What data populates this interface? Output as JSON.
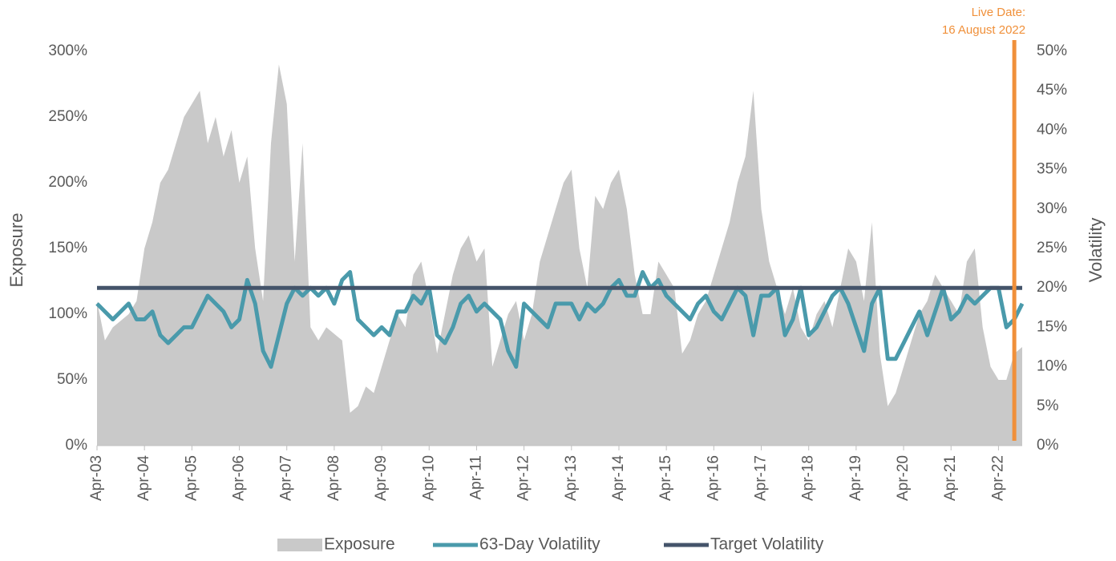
{
  "chart_data": {
    "type": "area-line",
    "x": [
      "Apr-03",
      "Jun-03",
      "Aug-03",
      "Oct-03",
      "Dec-03",
      "Feb-04",
      "Apr-04",
      "Jun-04",
      "Aug-04",
      "Oct-04",
      "Dec-04",
      "Feb-05",
      "Apr-05",
      "Jun-05",
      "Aug-05",
      "Oct-05",
      "Dec-05",
      "Feb-06",
      "Apr-06",
      "Jun-06",
      "Aug-06",
      "Oct-06",
      "Dec-06",
      "Feb-07",
      "Apr-07",
      "Jun-07",
      "Aug-07",
      "Oct-07",
      "Dec-07",
      "Feb-08",
      "Apr-08",
      "Jun-08",
      "Aug-08",
      "Oct-08",
      "Dec-08",
      "Feb-09",
      "Apr-09",
      "Jun-09",
      "Aug-09",
      "Oct-09",
      "Dec-09",
      "Feb-10",
      "Apr-10",
      "Jun-10",
      "Aug-10",
      "Oct-10",
      "Dec-10",
      "Feb-11",
      "Apr-11",
      "Jun-11",
      "Aug-11",
      "Oct-11",
      "Dec-11",
      "Feb-12",
      "Apr-12",
      "Jun-12",
      "Aug-12",
      "Oct-12",
      "Dec-12",
      "Feb-13",
      "Apr-13",
      "Jun-13",
      "Aug-13",
      "Oct-13",
      "Dec-13",
      "Feb-14",
      "Apr-14",
      "Jun-14",
      "Aug-14",
      "Oct-14",
      "Dec-14",
      "Feb-15",
      "Apr-15",
      "Jun-15",
      "Aug-15",
      "Oct-15",
      "Dec-15",
      "Feb-16",
      "Apr-16",
      "Jun-16",
      "Aug-16",
      "Oct-16",
      "Dec-16",
      "Feb-17",
      "Apr-17",
      "Jun-17",
      "Aug-17",
      "Oct-17",
      "Dec-17",
      "Feb-18",
      "Apr-18",
      "Jun-18",
      "Aug-18",
      "Oct-18",
      "Dec-18",
      "Feb-19",
      "Apr-19",
      "Jun-19",
      "Aug-19",
      "Oct-19",
      "Dec-19",
      "Feb-20",
      "Apr-20",
      "Jun-20",
      "Aug-20",
      "Oct-20",
      "Dec-20",
      "Feb-21",
      "Apr-21",
      "Jun-21",
      "Aug-21",
      "Oct-21",
      "Dec-21",
      "Feb-22",
      "Apr-22",
      "Jun-22",
      "Aug-22",
      "Oct-22"
    ],
    "xticks": [
      "Apr-03",
      "Apr-04",
      "Apr-05",
      "Apr-06",
      "Apr-07",
      "Apr-08",
      "Apr-09",
      "Apr-10",
      "Apr-11",
      "Apr-12",
      "Apr-13",
      "Apr-14",
      "Apr-15",
      "Apr-16",
      "Apr-17",
      "Apr-18",
      "Apr-19",
      "Apr-20",
      "Apr-21",
      "Apr-22"
    ],
    "ylabel": "Exposure",
    "y2label": "Volatility",
    "ylim": [
      0,
      300
    ],
    "yticks": [
      {
        "value": 0,
        "label": "0%"
      },
      {
        "value": 50,
        "label": "50%"
      },
      {
        "value": 100,
        "label": "100%"
      },
      {
        "value": 150,
        "label": "150%"
      },
      {
        "value": 200,
        "label": "200%"
      },
      {
        "value": 250,
        "label": "250%"
      },
      {
        "value": 300,
        "label": "300%"
      }
    ],
    "y2lim": [
      0,
      50
    ],
    "y2ticks": [
      {
        "value": 0,
        "label": "0%"
      },
      {
        "value": 5,
        "label": "5%"
      },
      {
        "value": 10,
        "label": "10%"
      },
      {
        "value": 15,
        "label": "15%"
      },
      {
        "value": 20,
        "label": "20%"
      },
      {
        "value": 25,
        "label": "25%"
      },
      {
        "value": 30,
        "label": "30%"
      },
      {
        "value": 35,
        "label": "35%"
      },
      {
        "value": 40,
        "label": "40%"
      },
      {
        "value": 45,
        "label": "45%"
      },
      {
        "value": 50,
        "label": "50%"
      }
    ],
    "series": [
      {
        "name": "Exposure",
        "kind": "area",
        "color": "#c9c9c9",
        "values": [
          110,
          80,
          90,
          95,
          100,
          110,
          150,
          170,
          200,
          210,
          230,
          250,
          260,
          270,
          230,
          250,
          220,
          240,
          200,
          220,
          150,
          110,
          230,
          290,
          260,
          140,
          230,
          90,
          80,
          90,
          85,
          80,
          25,
          30,
          45,
          40,
          60,
          80,
          100,
          90,
          130,
          140,
          110,
          70,
          100,
          130,
          150,
          160,
          140,
          150,
          60,
          80,
          100,
          110,
          80,
          100,
          140,
          160,
          180,
          200,
          210,
          150,
          120,
          190,
          180,
          200,
          210,
          180,
          130,
          100,
          100,
          140,
          130,
          120,
          70,
          80,
          100,
          110,
          130,
          150,
          170,
          200,
          220,
          270,
          180,
          140,
          120,
          100,
          120,
          90,
          80,
          100,
          110,
          90,
          120,
          150,
          140,
          110,
          170,
          70,
          30,
          40,
          60,
          80,
          100,
          110,
          130,
          120,
          110,
          100,
          140,
          150,
          90,
          60,
          50,
          50,
          70,
          75
        ]
      },
      {
        "name": "63-Day Volatility",
        "kind": "line",
        "axis": "y2",
        "color": "#4a9aab",
        "values": [
          18,
          17,
          16,
          17,
          18,
          16,
          16,
          17,
          14,
          13,
          14,
          15,
          15,
          17,
          19,
          18,
          17,
          15,
          16,
          21,
          18,
          12,
          10,
          14,
          18,
          20,
          19,
          20,
          19,
          20,
          18,
          21,
          22,
          16,
          15,
          14,
          15,
          14,
          17,
          17,
          19,
          18,
          20,
          14,
          13,
          15,
          18,
          19,
          17,
          18,
          17,
          16,
          12,
          10,
          18,
          17,
          16,
          15,
          18,
          18,
          18,
          16,
          18,
          17,
          18,
          20,
          21,
          19,
          19,
          22,
          20,
          21,
          19,
          18,
          17,
          16,
          18,
          19,
          17,
          16,
          18,
          20,
          19,
          14,
          19,
          19,
          20,
          14,
          16,
          20,
          14,
          15,
          17,
          19,
          20,
          18,
          15,
          12,
          18,
          20,
          11,
          11,
          13,
          15,
          17,
          14,
          17,
          20,
          16,
          17,
          19,
          18,
          19,
          20,
          20,
          15,
          16,
          18
        ]
      },
      {
        "name": "Target Volatility",
        "kind": "hline",
        "axis": "y2",
        "color": "#44546a",
        "value": 20
      }
    ],
    "annotation": {
      "lines": [
        "Live Date:",
        "16 August 2022"
      ],
      "x": "Aug-22",
      "color": "#f0903a"
    }
  }
}
